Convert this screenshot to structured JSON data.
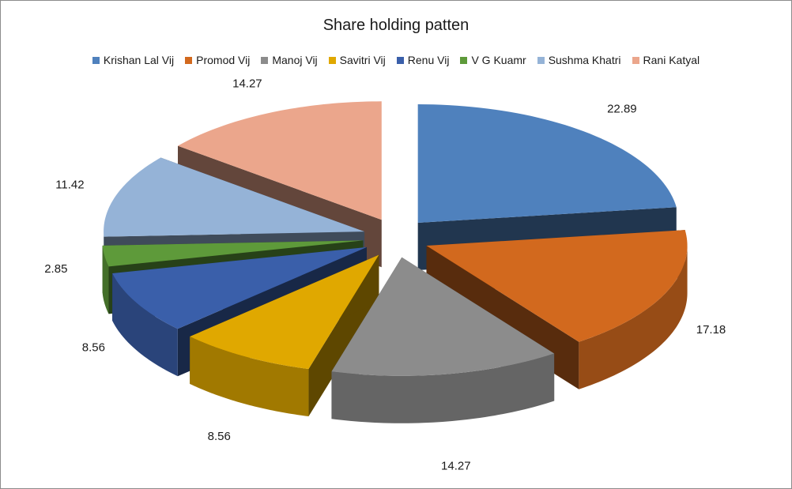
{
  "chart_data": {
    "type": "pie",
    "title": "Share holding patten",
    "categories": [
      "Krishan Lal Vij",
      "Promod Vij",
      "Manoj Vij",
      "Savitri Vij",
      "Renu Vij",
      "V G Kuamr",
      "Sushma Khatri",
      "Rani Katyal"
    ],
    "values": [
      22.89,
      17.18,
      14.27,
      8.56,
      8.56,
      2.85,
      11.42,
      14.27
    ],
    "data_labels": [
      "22.89",
      "17.18",
      "14.27",
      "8.56",
      "8.56",
      "2.85",
      "11.42",
      "14.27"
    ],
    "colors": [
      "#4F81BD",
      "#D2691E",
      "#8C8C8C",
      "#E0A800",
      "#3A5FAA",
      "#5E9A3A",
      "#95B3D7",
      "#EBA68C"
    ],
    "legend_position": "top",
    "style": "exploded 3-D pie"
  }
}
